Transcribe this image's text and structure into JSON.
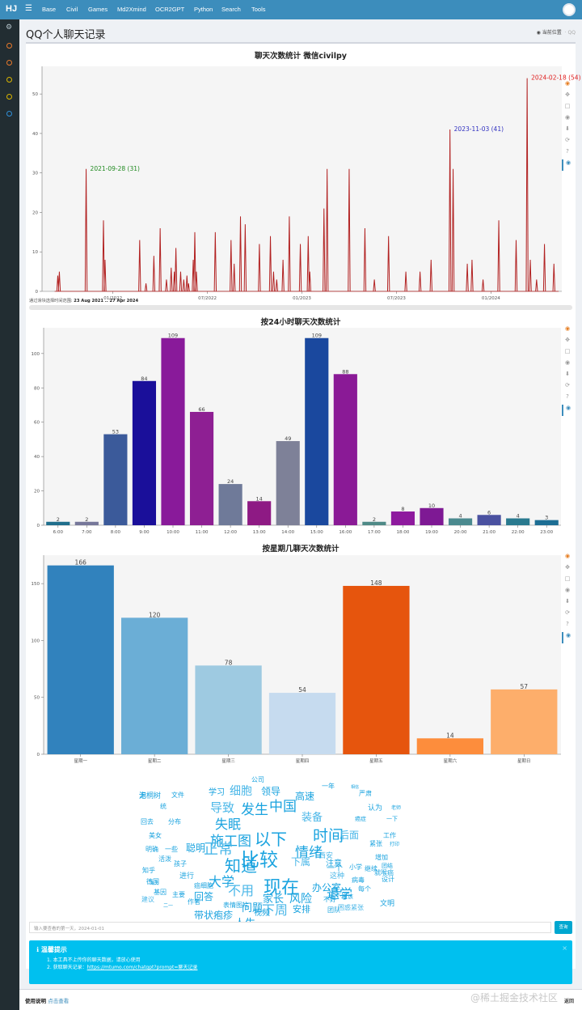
{
  "brand": "HJ",
  "nav": [
    "Base",
    "Civil",
    "Games",
    "Md2Xmind",
    "OCR2GPT",
    "Python",
    "Search",
    "Tools"
  ],
  "page_title": "QQ个人聊天记录",
  "breadcrumb": "当前位置",
  "breadcrumb_tail": "· QQ",
  "colors": {
    "accent": "#3c8dbc",
    "sidebar": "#222d32",
    "alert": "#00c0ef"
  },
  "sidebar_dot_colors": [
    "#e7792b",
    "#e7792b",
    "#d9b500",
    "#d9b500",
    "#2f8fd8"
  ],
  "tool_icons": [
    "bokeh-logo-icon",
    "pan-icon",
    "box-zoom-icon",
    "wheel-zoom-icon",
    "save-icon",
    "reset-icon",
    "help-icon",
    "hover-icon"
  ],
  "range": {
    "label": "通过滑块选择时间范围:",
    "value": "23 Aug 2021 .. 27 Apr 2024"
  },
  "chart_data": [
    {
      "type": "line",
      "title": "聊天次数统计 微信civilpy",
      "color": "#b22222",
      "ylim": [
        0,
        57
      ],
      "yticks": [
        0,
        10,
        20,
        30,
        40,
        50
      ],
      "xticks": [
        "01/2022",
        "07/2022",
        "01/2023",
        "07/2023",
        "01/2024"
      ],
      "x_unit": "months since Aug 2021",
      "xlim": [
        0,
        33
      ],
      "spikes": [
        [
          1.0,
          4
        ],
        [
          1.1,
          5
        ],
        [
          2.8,
          31
        ],
        [
          3.9,
          18
        ],
        [
          4.0,
          8
        ],
        [
          6.2,
          13
        ],
        [
          6.6,
          2
        ],
        [
          7.1,
          9
        ],
        [
          7.5,
          16
        ],
        [
          7.9,
          3
        ],
        [
          8.2,
          6
        ],
        [
          8.4,
          5
        ],
        [
          8.5,
          11
        ],
        [
          8.8,
          5
        ],
        [
          9.0,
          3
        ],
        [
          9.2,
          4
        ],
        [
          9.3,
          2
        ],
        [
          9.6,
          8
        ],
        [
          9.7,
          15
        ],
        [
          9.8,
          5
        ],
        [
          11.0,
          15
        ],
        [
          12.0,
          13
        ],
        [
          12.2,
          7
        ],
        [
          12.6,
          19
        ],
        [
          12.9,
          17
        ],
        [
          13.8,
          12
        ],
        [
          14.5,
          14
        ],
        [
          14.7,
          5
        ],
        [
          14.9,
          3
        ],
        [
          15.3,
          8
        ],
        [
          15.7,
          19
        ],
        [
          16.4,
          12
        ],
        [
          16.9,
          14
        ],
        [
          17.0,
          5
        ],
        [
          17.9,
          21
        ],
        [
          18.1,
          31
        ],
        [
          19.5,
          31
        ],
        [
          20.5,
          16
        ],
        [
          21.1,
          3
        ],
        [
          22.0,
          14
        ],
        [
          23.1,
          5
        ],
        [
          24.0,
          5
        ],
        [
          24.7,
          8
        ],
        [
          25.9,
          41
        ],
        [
          26.1,
          31
        ],
        [
          27.0,
          7
        ],
        [
          27.3,
          8
        ],
        [
          28.0,
          3
        ],
        [
          29.0,
          18
        ],
        [
          30.1,
          13
        ],
        [
          30.8,
          54
        ],
        [
          31.0,
          8
        ],
        [
          31.4,
          3
        ],
        [
          31.9,
          12
        ],
        [
          32.5,
          7
        ]
      ],
      "annotations": [
        {
          "x": 2.8,
          "y": 31,
          "label": "2021-09-28  (31)",
          "color": "#228b22"
        },
        {
          "x": 25.9,
          "y": 41,
          "label": "2023-11-03  (41)",
          "color": "#3030c0"
        },
        {
          "x": 30.8,
          "y": 54,
          "label": "2024-02-18  (54)",
          "color": "#e02020"
        }
      ]
    },
    {
      "type": "bar",
      "title": "按24小时聊天次数统计",
      "ylim": [
        0,
        115
      ],
      "yticks": [
        0,
        20,
        40,
        60,
        80,
        100
      ],
      "categories": [
        "6:00",
        "7:00",
        "8:00",
        "9:00",
        "10:00",
        "11:00",
        "12:00",
        "13:00",
        "14:00",
        "15:00",
        "16:00",
        "17:00",
        "18:00",
        "19:00",
        "20:00",
        "21:00",
        "22:00",
        "23:00"
      ],
      "values": [
        2,
        2,
        53,
        84,
        109,
        66,
        24,
        14,
        49,
        109,
        88,
        2,
        8,
        10,
        4,
        6,
        4,
        3
      ],
      "colors": [
        "#1f6e8c",
        "#76779a",
        "#3b5a9a",
        "#1a0f9a",
        "#891a9a",
        "#8e1f93",
        "#6f7a99",
        "#8e1a84",
        "#7e8198",
        "#1a489e",
        "#8a1a96",
        "#4f8a87",
        "#8e1a9e",
        "#7e1994",
        "#4b8a8f",
        "#4a51a0",
        "#2a7a8f",
        "#1d6e94"
      ]
    },
    {
      "type": "bar",
      "title": "按星期几聊天次数统计",
      "ylim": [
        0,
        175
      ],
      "yticks": [
        0,
        50,
        100,
        150
      ],
      "categories": [
        "星期一",
        "星期二",
        "星期三",
        "星期四",
        "星期五",
        "星期六",
        "星期日"
      ],
      "values": [
        166,
        120,
        78,
        54,
        148,
        14,
        57
      ],
      "colors": [
        "#3182bd",
        "#6baed6",
        "#9ecae1",
        "#c6dbef",
        "#e6550d",
        "#fd8d3c",
        "#fdae6b"
      ]
    }
  ],
  "wordcloud": [
    "泡桐树",
    "文件",
    "学习",
    "细胞",
    "公司",
    "领导",
    "高速",
    "一年",
    "相信",
    "统",
    "导致",
    "发生",
    "中国",
    "严肃",
    "回去",
    "分布",
    "失眠",
    "装备",
    "认为",
    "老师",
    "美女",
    "施工图",
    "以下",
    "时间",
    "后面",
    "癌症",
    "一下",
    "工作",
    "明确",
    "一些",
    "聪明",
    "正常",
    "情绪",
    "紧张",
    "打印",
    "活泼",
    "知道",
    "比较",
    "下属",
    "注意",
    "增加",
    "团结",
    "孩子",
    "知乎",
    "现在",
    "这种",
    "小学",
    "就喉癌",
    "进行",
    "德国",
    "大学",
    "一个",
    "不用",
    "病毒",
    "设计",
    "每天",
    "回答",
    "家长",
    "办公室",
    "西安",
    "基因",
    "癌细胞",
    "退学",
    "每个",
    "继续",
    "主要",
    "建议",
    "作者",
    "问题",
    "风险",
    "不好",
    "表情图片",
    "带状疱疹",
    "下周",
    "团队",
    "人生",
    "是不是",
    "视频",
    "应该",
    "安排",
    "困惑紧张",
    "文明",
    "二一",
    "无"
  ],
  "search": {
    "placeholder": "输入要查看的第一天，2024-01-01",
    "button": "查询"
  },
  "alert": {
    "title": "温馨提示",
    "item1": "1. 本工具不上传你的聊天数据，请放心使用",
    "item2_prefix": "2. 获取聊天记录：",
    "item2_link": "https://mtumo.com/chatgpt?prompt=聊天记录"
  },
  "footer": {
    "label": "使用说明",
    "link": "点击查看",
    "right": "返回"
  },
  "watermark": "@稀土掘金技术社区"
}
